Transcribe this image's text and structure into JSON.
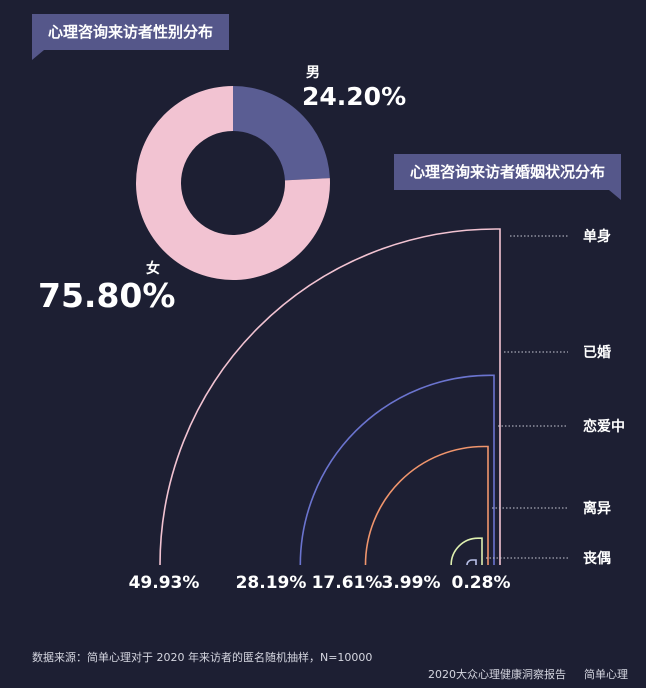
{
  "gender": {
    "title": "心理咨询来访者性别分布",
    "male_label": "男",
    "male_pct": "24.20%",
    "female_label": "女",
    "female_pct": "75.80%"
  },
  "marital": {
    "title": "心理咨询来访者婚姻状况分布"
  },
  "footer": {
    "source": "数据来源：简单心理对于 2020 年来访者的匿名随机抽样，N=10000",
    "report": "2020大众心理健康洞察报告",
    "brand": "简单心理"
  },
  "colors": {
    "background": "#1d1f33",
    "male": "#5a5d93",
    "female": "#f2c3d2",
    "single": "#f2c3d2",
    "married": "#6b74cf",
    "dating": "#f0956d",
    "divorced": "#dff0b0",
    "widowed": "#b9c0e8"
  },
  "chart_data": [
    {
      "type": "pie",
      "title": "心理咨询来访者性别分布",
      "categories": [
        "男",
        "女"
      ],
      "values": [
        24.2,
        75.8
      ],
      "unit": "%"
    },
    {
      "type": "bar",
      "title": "心理咨询来访者婚姻状况分布",
      "categories": [
        "单身",
        "已婚",
        "恋爱中",
        "离异",
        "丧偶"
      ],
      "values": [
        49.93,
        28.19,
        17.61,
        3.99,
        0.28
      ],
      "value_labels": [
        "49.93%",
        "28.19%",
        "17.61%",
        "3.99%",
        "0.28%"
      ],
      "unit": "%"
    }
  ]
}
